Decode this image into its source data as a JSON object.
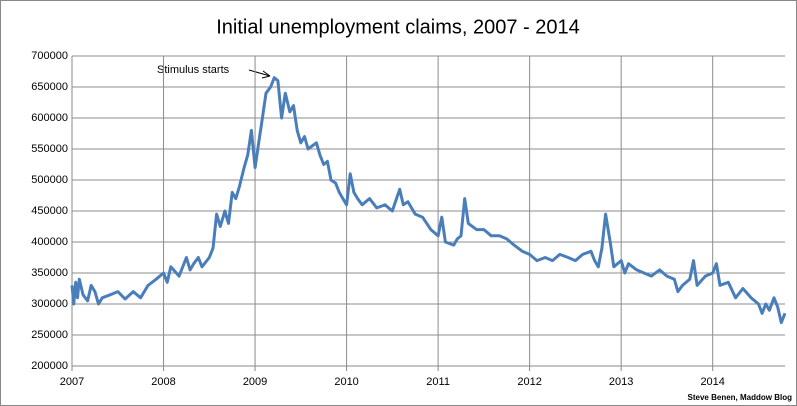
{
  "chart_data": {
    "type": "line",
    "title": "Initial unemployment claims, 2007 - 2014",
    "annotation": "Stimulus starts",
    "source": "Steve Benen, Maddow Blog",
    "xlim": [
      2007,
      2014.79
    ],
    "xticks": [
      2007,
      2008,
      2009,
      2010,
      2011,
      2012,
      2013,
      2014
    ],
    "ylim": [
      200000,
      700000
    ],
    "yticks": [
      200000,
      250000,
      300000,
      350000,
      400000,
      450000,
      500000,
      550000,
      600000,
      650000,
      700000
    ],
    "grid": true,
    "x": [
      2007.0,
      2007.02,
      2007.04,
      2007.06,
      2007.08,
      2007.12,
      2007.17,
      2007.21,
      2007.25,
      2007.29,
      2007.33,
      2007.42,
      2007.5,
      2007.58,
      2007.67,
      2007.75,
      2007.83,
      2007.92,
      2008.0,
      2008.04,
      2008.08,
      2008.17,
      2008.25,
      2008.29,
      2008.33,
      2008.38,
      2008.42,
      2008.5,
      2008.54,
      2008.58,
      2008.62,
      2008.67,
      2008.71,
      2008.75,
      2008.79,
      2008.83,
      2008.88,
      2008.92,
      2008.96,
      2009.0,
      2009.04,
      2009.08,
      2009.12,
      2009.17,
      2009.21,
      2009.25,
      2009.29,
      2009.33,
      2009.38,
      2009.42,
      2009.46,
      2009.5,
      2009.54,
      2009.58,
      2009.67,
      2009.71,
      2009.75,
      2009.79,
      2009.83,
      2009.88,
      2009.92,
      2009.96,
      2010.0,
      2010.04,
      2010.08,
      2010.12,
      2010.17,
      2010.25,
      2010.33,
      2010.42,
      2010.5,
      2010.58,
      2010.62,
      2010.67,
      2010.75,
      2010.83,
      2010.92,
      2011.0,
      2011.04,
      2011.08,
      2011.17,
      2011.21,
      2011.25,
      2011.29,
      2011.33,
      2011.42,
      2011.5,
      2011.58,
      2011.67,
      2011.75,
      2011.83,
      2011.92,
      2012.0,
      2012.08,
      2012.17,
      2012.25,
      2012.33,
      2012.42,
      2012.5,
      2012.58,
      2012.67,
      2012.71,
      2012.75,
      2012.79,
      2012.83,
      2012.88,
      2012.92,
      2013.0,
      2013.04,
      2013.08,
      2013.17,
      2013.25,
      2013.33,
      2013.42,
      2013.5,
      2013.58,
      2013.62,
      2013.67,
      2013.75,
      2013.79,
      2013.83,
      2013.92,
      2014.0,
      2014.04,
      2014.08,
      2014.17,
      2014.25,
      2014.33,
      2014.42,
      2014.5,
      2014.54,
      2014.58,
      2014.62,
      2014.67,
      2014.71,
      2014.75,
      2014.79
    ],
    "series": [
      {
        "color": "#4a7ebb",
        "values": [
          330000,
          300000,
          335000,
          310000,
          340000,
          315000,
          305000,
          330000,
          320000,
          300000,
          310000,
          315000,
          320000,
          308000,
          320000,
          310000,
          330000,
          340000,
          350000,
          335000,
          360000,
          345000,
          375000,
          355000,
          365000,
          375000,
          360000,
          375000,
          390000,
          445000,
          425000,
          450000,
          430000,
          480000,
          470000,
          490000,
          520000,
          540000,
          580000,
          520000,
          560000,
          600000,
          640000,
          650000,
          665000,
          660000,
          600000,
          640000,
          610000,
          620000,
          580000,
          560000,
          570000,
          550000,
          560000,
          540000,
          525000,
          530000,
          500000,
          495000,
          480000,
          470000,
          460000,
          510000,
          480000,
          470000,
          460000,
          470000,
          455000,
          460000,
          450000,
          485000,
          460000,
          465000,
          445000,
          440000,
          420000,
          410000,
          440000,
          400000,
          395000,
          405000,
          410000,
          470000,
          430000,
          420000,
          420000,
          410000,
          410000,
          405000,
          395000,
          385000,
          380000,
          370000,
          375000,
          370000,
          380000,
          375000,
          370000,
          380000,
          385000,
          370000,
          360000,
          390000,
          445000,
          400000,
          360000,
          370000,
          350000,
          365000,
          355000,
          350000,
          345000,
          355000,
          345000,
          340000,
          320000,
          330000,
          340000,
          370000,
          330000,
          345000,
          350000,
          365000,
          330000,
          335000,
          310000,
          325000,
          310000,
          300000,
          285000,
          300000,
          290000,
          310000,
          295000,
          270000,
          285000
        ]
      }
    ]
  }
}
